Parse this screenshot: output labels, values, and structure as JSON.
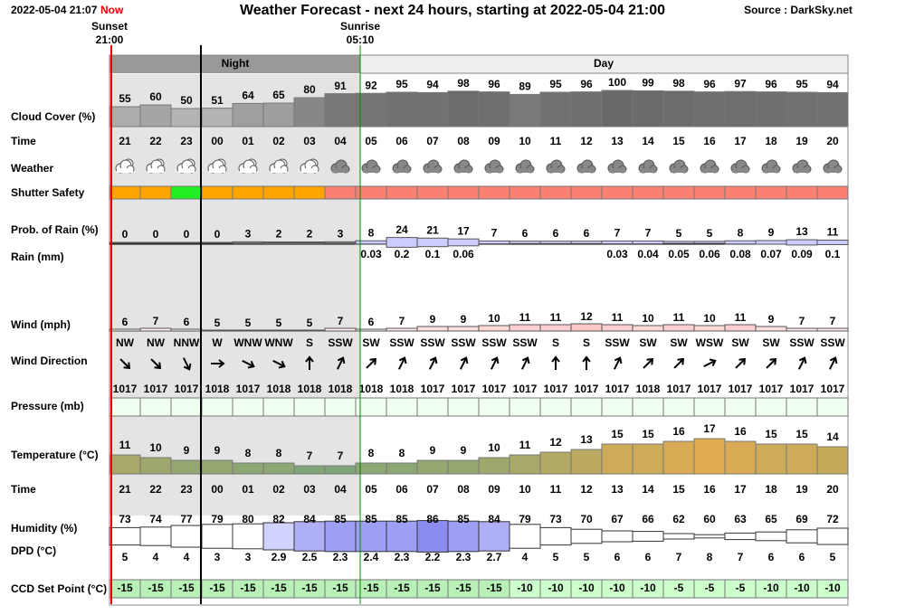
{
  "header": {
    "timestamp": "2022-05-04 21:07",
    "now": "Now",
    "title": "Weather Forecast - next 24 hours, starting at 2022-05-04 21:00",
    "source": "Source : DarkSky.net"
  },
  "sunset": {
    "label": "Sunset",
    "time": "21:00"
  },
  "sunrise": {
    "label": "Sunrise",
    "time": "05:10"
  },
  "periods": {
    "night": "Night",
    "day": "Day"
  },
  "hours": [
    "21",
    "22",
    "23",
    "00",
    "01",
    "02",
    "03",
    "04",
    "05",
    "06",
    "07",
    "08",
    "09",
    "10",
    "11",
    "12",
    "13",
    "14",
    "15",
    "16",
    "17",
    "18",
    "19",
    "20"
  ],
  "rows": {
    "cloud_cover": {
      "label": "Cloud Cover (%)",
      "values": [
        55,
        60,
        50,
        51,
        64,
        65,
        80,
        91,
        92,
        95,
        94,
        98,
        96,
        89,
        95,
        96,
        100,
        99,
        98,
        96,
        97,
        96,
        95,
        94
      ]
    },
    "time": {
      "label": "Time"
    },
    "weather": {
      "label": "Weather"
    },
    "shutter_safety": {
      "label": "Shutter Safety",
      "colors": [
        "#ffa500",
        "#ffa500",
        "#22ee22",
        "#ffa500",
        "#ffa500",
        "#ffa500",
        "#ffa500",
        "#fa8072",
        "#fa8072",
        "#fa8072",
        "#fa8072",
        "#fa8072",
        "#fa8072",
        "#fa8072",
        "#fa8072",
        "#fa8072",
        "#fa8072",
        "#fa8072",
        "#fa8072",
        "#fa8072",
        "#fa8072",
        "#fa8072",
        "#fa8072",
        "#fa8072"
      ]
    },
    "rain_probability": {
      "label": "Prob. of Rain (%)",
      "values": [
        0,
        0,
        0,
        0,
        3,
        2,
        2,
        3,
        8,
        24,
        21,
        17,
        7,
        6,
        6,
        6,
        7,
        7,
        5,
        5,
        8,
        9,
        13,
        11
      ]
    },
    "rain": {
      "label": "Rain (mm)",
      "values": [
        null,
        null,
        null,
        null,
        null,
        null,
        null,
        null,
        0.03,
        0.2,
        0.1,
        0.06,
        null,
        null,
        null,
        null,
        0.03,
        0.04,
        0.05,
        0.06,
        0.08,
        0.07,
        0.09,
        0.1
      ]
    },
    "wind": {
      "label": "Wind (mph)",
      "values": [
        6,
        7,
        6,
        5,
        5,
        5,
        5,
        7,
        6,
        7,
        9,
        9,
        10,
        11,
        11,
        12,
        11,
        10,
        11,
        10,
        11,
        9,
        7,
        7
      ]
    },
    "wind_direction": {
      "label": "Wind Direction",
      "values": [
        "NW",
        "NW",
        "NNW",
        "W",
        "WNW",
        "WNW",
        "S",
        "SSW",
        "SW",
        "SSW",
        "SSW",
        "SSW",
        "SSW",
        "SSW",
        "S",
        "S",
        "SSW",
        "SW",
        "SW",
        "WSW",
        "SW",
        "SW",
        "SSW",
        "SSW"
      ]
    },
    "pressure": {
      "label": "Pressure (mb)",
      "values": [
        1017,
        1017,
        1017,
        1018,
        1017,
        1018,
        1018,
        1018,
        1018,
        1018,
        1017,
        1017,
        1017,
        1017,
        1017,
        1017,
        1017,
        1018,
        1017,
        1017,
        1017,
        1017,
        1017,
        1017
      ]
    },
    "temperature": {
      "label": "Temperature (°C)",
      "values": [
        11,
        10,
        9,
        9,
        8,
        8,
        7,
        7,
        8,
        8,
        9,
        9,
        10,
        11,
        12,
        13,
        15,
        15,
        16,
        17,
        16,
        15,
        15,
        14
      ]
    },
    "humidity": {
      "label": "Humidity (%)",
      "values": [
        73,
        74,
        77,
        79,
        80,
        82,
        84,
        85,
        85,
        85,
        86,
        85,
        84,
        79,
        73,
        70,
        67,
        66,
        62,
        60,
        63,
        65,
        69,
        72
      ]
    },
    "dpd": {
      "label": "DPD (°C)",
      "values": [
        5,
        4,
        4,
        3,
        3,
        2.9,
        2.5,
        2.3,
        2.4,
        2.3,
        2.2,
        2.3,
        2.7,
        4,
        5,
        5,
        6,
        6,
        7,
        8,
        7,
        6,
        6,
        5
      ]
    },
    "ccd_set_point": {
      "label": "CCD Set Point (°C)",
      "values": [
        -15,
        -15,
        -15,
        -15,
        -15,
        -15,
        -15,
        -15,
        -15,
        -15,
        -15,
        -15,
        -15,
        -10,
        -10,
        -10,
        -10,
        -10,
        -5,
        -5,
        -5,
        -10,
        -10,
        -10
      ]
    }
  }
}
